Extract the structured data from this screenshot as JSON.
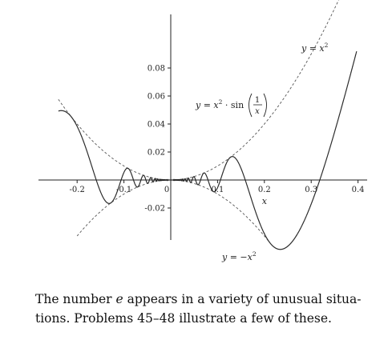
{
  "chart_data": {
    "type": "line",
    "xlim": [
      -0.24,
      0.4
    ],
    "ylim": [
      -0.04,
      0.097
    ],
    "xlabel": "x",
    "x_ticks": [
      -0.2,
      -0.1,
      0,
      0.1,
      0.2,
      0.3,
      0.4
    ],
    "x_tick_labels": [
      "-0.2",
      "-0.1",
      "0",
      "0.1",
      "0.2",
      "0.3",
      "0.4"
    ],
    "y_ticks": [
      -0.02,
      0.02,
      0.04,
      0.06,
      0.08
    ],
    "y_tick_labels": [
      "-0.02",
      "0.02",
      "0.04",
      "0.06",
      "0.08"
    ],
    "grid": false,
    "series": [
      {
        "key": "main",
        "function": "x^2*sin(1/x)",
        "style": "solid",
        "label_parts": [
          "y = x",
          "2",
          " · sin",
          "1",
          "x"
        ]
      },
      {
        "key": "upper",
        "function": "x^2",
        "style": "dashed",
        "label_parts": [
          "y = x",
          "2"
        ]
      },
      {
        "key": "lower",
        "function": "-x^2",
        "style": "dashed",
        "label_parts": [
          "y = −x",
          "2"
        ]
      }
    ],
    "colors": {
      "axis": "#222222",
      "curve": "#2a2a2a",
      "envelope": "#555555"
    }
  },
  "caption": {
    "line1": "The number e appears in a variety of unusual situa-",
    "line2": "tions. Problems 45–48 illustrate a few of these.",
    "part1": "The number ",
    "e": "e",
    "part2": " appears in a variety of unusual situa-"
  }
}
